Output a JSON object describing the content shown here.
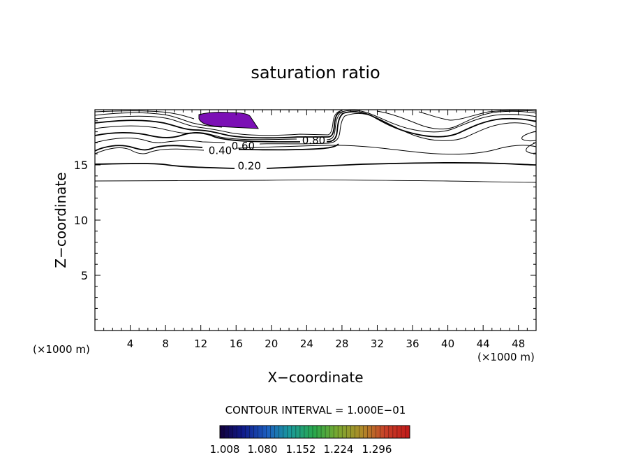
{
  "chart_data": {
    "type": "contour",
    "title": "saturation ratio",
    "xlabel": "X−coordinate",
    "ylabel": "Z−coordinate",
    "x_unit_left": "(×1000 m)",
    "x_unit_right": "(×1000 m)",
    "xlim": [
      0,
      50
    ],
    "ylim": [
      0,
      20
    ],
    "x_ticks": [
      "4",
      "8",
      "12",
      "16",
      "20",
      "24",
      "28",
      "32",
      "36",
      "40",
      "44",
      "48"
    ],
    "x_tick_values": [
      4,
      8,
      12,
      16,
      20,
      24,
      28,
      32,
      36,
      40,
      44,
      48
    ],
    "y_ticks": [
      "5",
      "10",
      "15"
    ],
    "y_tick_values": [
      5,
      10,
      15
    ],
    "contour_interval_text": "CONTOUR INTERVAL = 1.000E−01",
    "contour_labels": [
      {
        "text": "0.20",
        "x": 17.5,
        "z": 14.9
      },
      {
        "text": "0.40",
        "x": 14.2,
        "z": 16.3
      },
      {
        "text": "0.60",
        "x": 16.8,
        "z": 16.7
      },
      {
        "text": "0.80",
        "x": 24.8,
        "z": 17.2
      }
    ],
    "shaded_region": {
      "label": "saturation ratio > 1.0",
      "color": "#7B0FB5"
    },
    "colorbar": {
      "tick_labels": [
        "1.008",
        "1.080",
        "1.152",
        "1.224",
        "1.296"
      ],
      "colors": [
        "#1a0050",
        "#0020a0",
        "#0060c0",
        "#00a0a0",
        "#00b050",
        "#60c040",
        "#a0b020",
        "#c06020",
        "#d02020",
        "#b01010"
      ]
    }
  }
}
